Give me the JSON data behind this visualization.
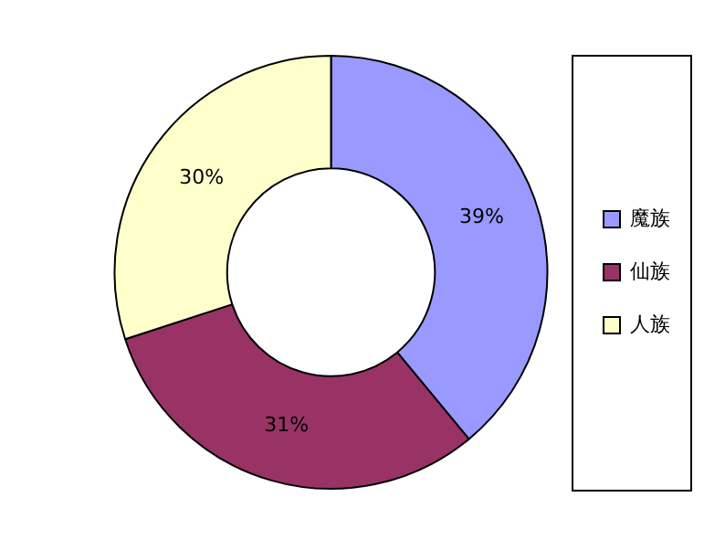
{
  "chart_data": {
    "type": "donut",
    "categories": [
      "魔族",
      "仙族",
      "人族"
    ],
    "values": [
      39,
      31,
      30
    ],
    "colors": [
      "#9999ff",
      "#993366",
      "#ffffcc"
    ],
    "value_labels": [
      "39%",
      "31%",
      "30%"
    ],
    "legend": "right"
  }
}
